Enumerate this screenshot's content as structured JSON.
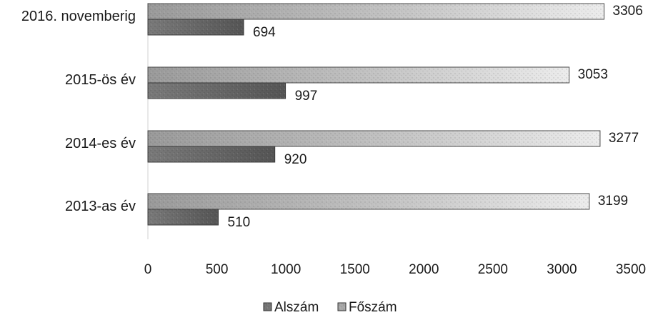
{
  "chart_data": {
    "type": "bar",
    "orientation": "horizontal",
    "categories": [
      "2016. novemberig",
      "2015-ös év",
      "2014-es év",
      "2013-as év"
    ],
    "series": [
      {
        "name": "Alszám",
        "values": [
          694,
          997,
          920,
          510
        ]
      },
      {
        "name": "Főszám",
        "values": [
          3306,
          3053,
          3277,
          3199
        ]
      }
    ],
    "xlim": [
      0,
      3500
    ],
    "xticks": [
      0,
      500,
      1000,
      1500,
      2000,
      2500,
      3000,
      3500
    ],
    "grid": false,
    "legend_position": "bottom",
    "colors": {
      "Alszám": "#6f6f6f",
      "Főszám": "#c9c9c9"
    }
  }
}
